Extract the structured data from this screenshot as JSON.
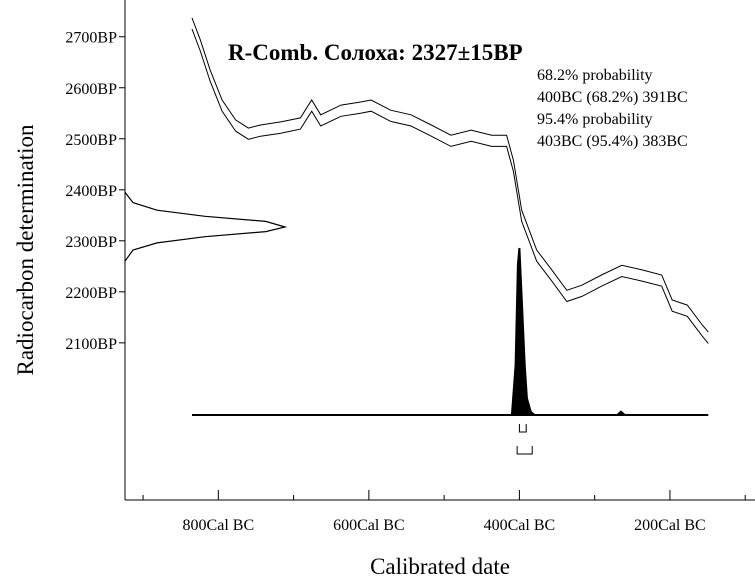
{
  "chart_data": {
    "type": "line",
    "title": "R-Comb. Солоха: 2327±15BP",
    "annotations": [
      "68.2% probability",
      "400BC (68.2%) 391BC",
      "95.4% probability",
      "403BC (95.4%) 383BC"
    ],
    "x_label": "Calibrated date",
    "y_label": "Radiocarbon determination",
    "xlim": [
      924,
      87
    ],
    "xticks": [
      {
        "value": 800,
        "label": "800Cal BC"
      },
      {
        "value": 600,
        "label": "600Cal BC"
      },
      {
        "value": 400,
        "label": "400Cal BC"
      },
      {
        "value": 200,
        "label": "200Cal BC"
      }
    ],
    "xminor": [
      900,
      700,
      500,
      300,
      100
    ],
    "ylim": [
      1792,
      2772
    ],
    "yticks": [
      {
        "value": 2100,
        "label": "2100BP"
      },
      {
        "value": 2200,
        "label": "2200BP"
      },
      {
        "value": 2300,
        "label": "2300BP"
      },
      {
        "value": 2400,
        "label": "2400BP"
      },
      {
        "value": 2500,
        "label": "2500BP"
      },
      {
        "value": 2600,
        "label": "2600BP"
      },
      {
        "value": 2700,
        "label": "2700BP"
      }
    ],
    "curve": {
      "x": [
        835,
        824,
        811,
        795,
        777,
        760,
        744,
        717,
        691,
        676,
        664,
        637,
        611,
        597,
        571,
        544,
        517,
        491,
        464,
        437,
        417,
        408,
        397,
        377,
        357,
        337,
        317,
        291,
        264,
        237,
        211,
        197,
        177,
        157,
        149
      ],
      "upper": [
        2737,
        2694,
        2635,
        2576,
        2537,
        2521,
        2527,
        2533,
        2541,
        2576,
        2547,
        2566,
        2572,
        2576,
        2556,
        2547,
        2527,
        2507,
        2517,
        2507,
        2507,
        2458,
        2360,
        2282,
        2243,
        2203,
        2213,
        2233,
        2252,
        2243,
        2233,
        2184,
        2174,
        2135,
        2121
      ],
      "lower": [
        2715,
        2672,
        2613,
        2554,
        2515,
        2499,
        2505,
        2511,
        2519,
        2554,
        2525,
        2544,
        2550,
        2554,
        2534,
        2525,
        2505,
        2485,
        2495,
        2485,
        2485,
        2436,
        2338,
        2260,
        2221,
        2181,
        2191,
        2211,
        2230,
        2221,
        2211,
        2162,
        2152,
        2113,
        2099
      ]
    },
    "likelihood": {
      "bp": [
        2395,
        2375,
        2360,
        2348,
        2338,
        2327,
        2318,
        2308,
        2296,
        2282,
        2260
      ],
      "density": [
        0,
        0.05,
        0.2,
        0.5,
        0.88,
        1,
        0.88,
        0.5,
        0.2,
        0.05,
        0
      ]
    },
    "posterior": {
      "x": [
        835,
        410,
        405,
        402,
        400,
        397,
        393,
        390,
        385,
        380,
        270,
        265,
        260,
        149
      ],
      "density": [
        0,
        0,
        0.3,
        0.9,
        1,
        0.7,
        0.3,
        0.1,
        0.02,
        0,
        0,
        0.02,
        0,
        0
      ]
    },
    "ranges": [
      {
        "level": 68.2,
        "from": 400,
        "to": 391
      },
      {
        "level": 95.4,
        "from": 403,
        "to": 383
      }
    ]
  }
}
